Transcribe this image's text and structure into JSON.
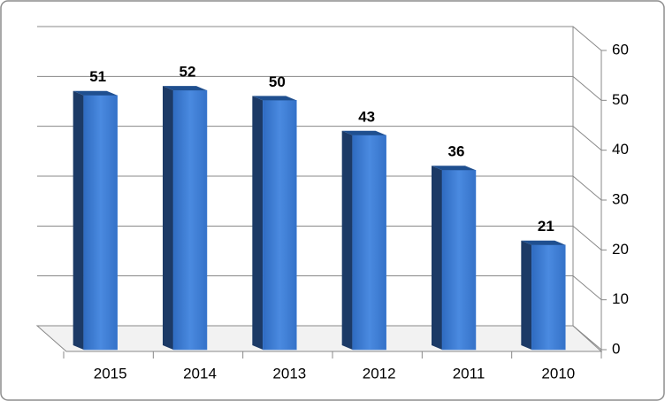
{
  "chart_data": {
    "type": "bar",
    "categories": [
      "2015",
      "2014",
      "2013",
      "2012",
      "2011",
      "2010"
    ],
    "values": [
      51,
      52,
      50,
      43,
      36,
      21
    ],
    "color": "#3b7bd4",
    "ylim": [
      0,
      60
    ],
    "yticks": [
      0,
      10,
      20,
      30,
      40,
      50,
      60
    ],
    "grid": true,
    "y_axis_side": "right"
  }
}
